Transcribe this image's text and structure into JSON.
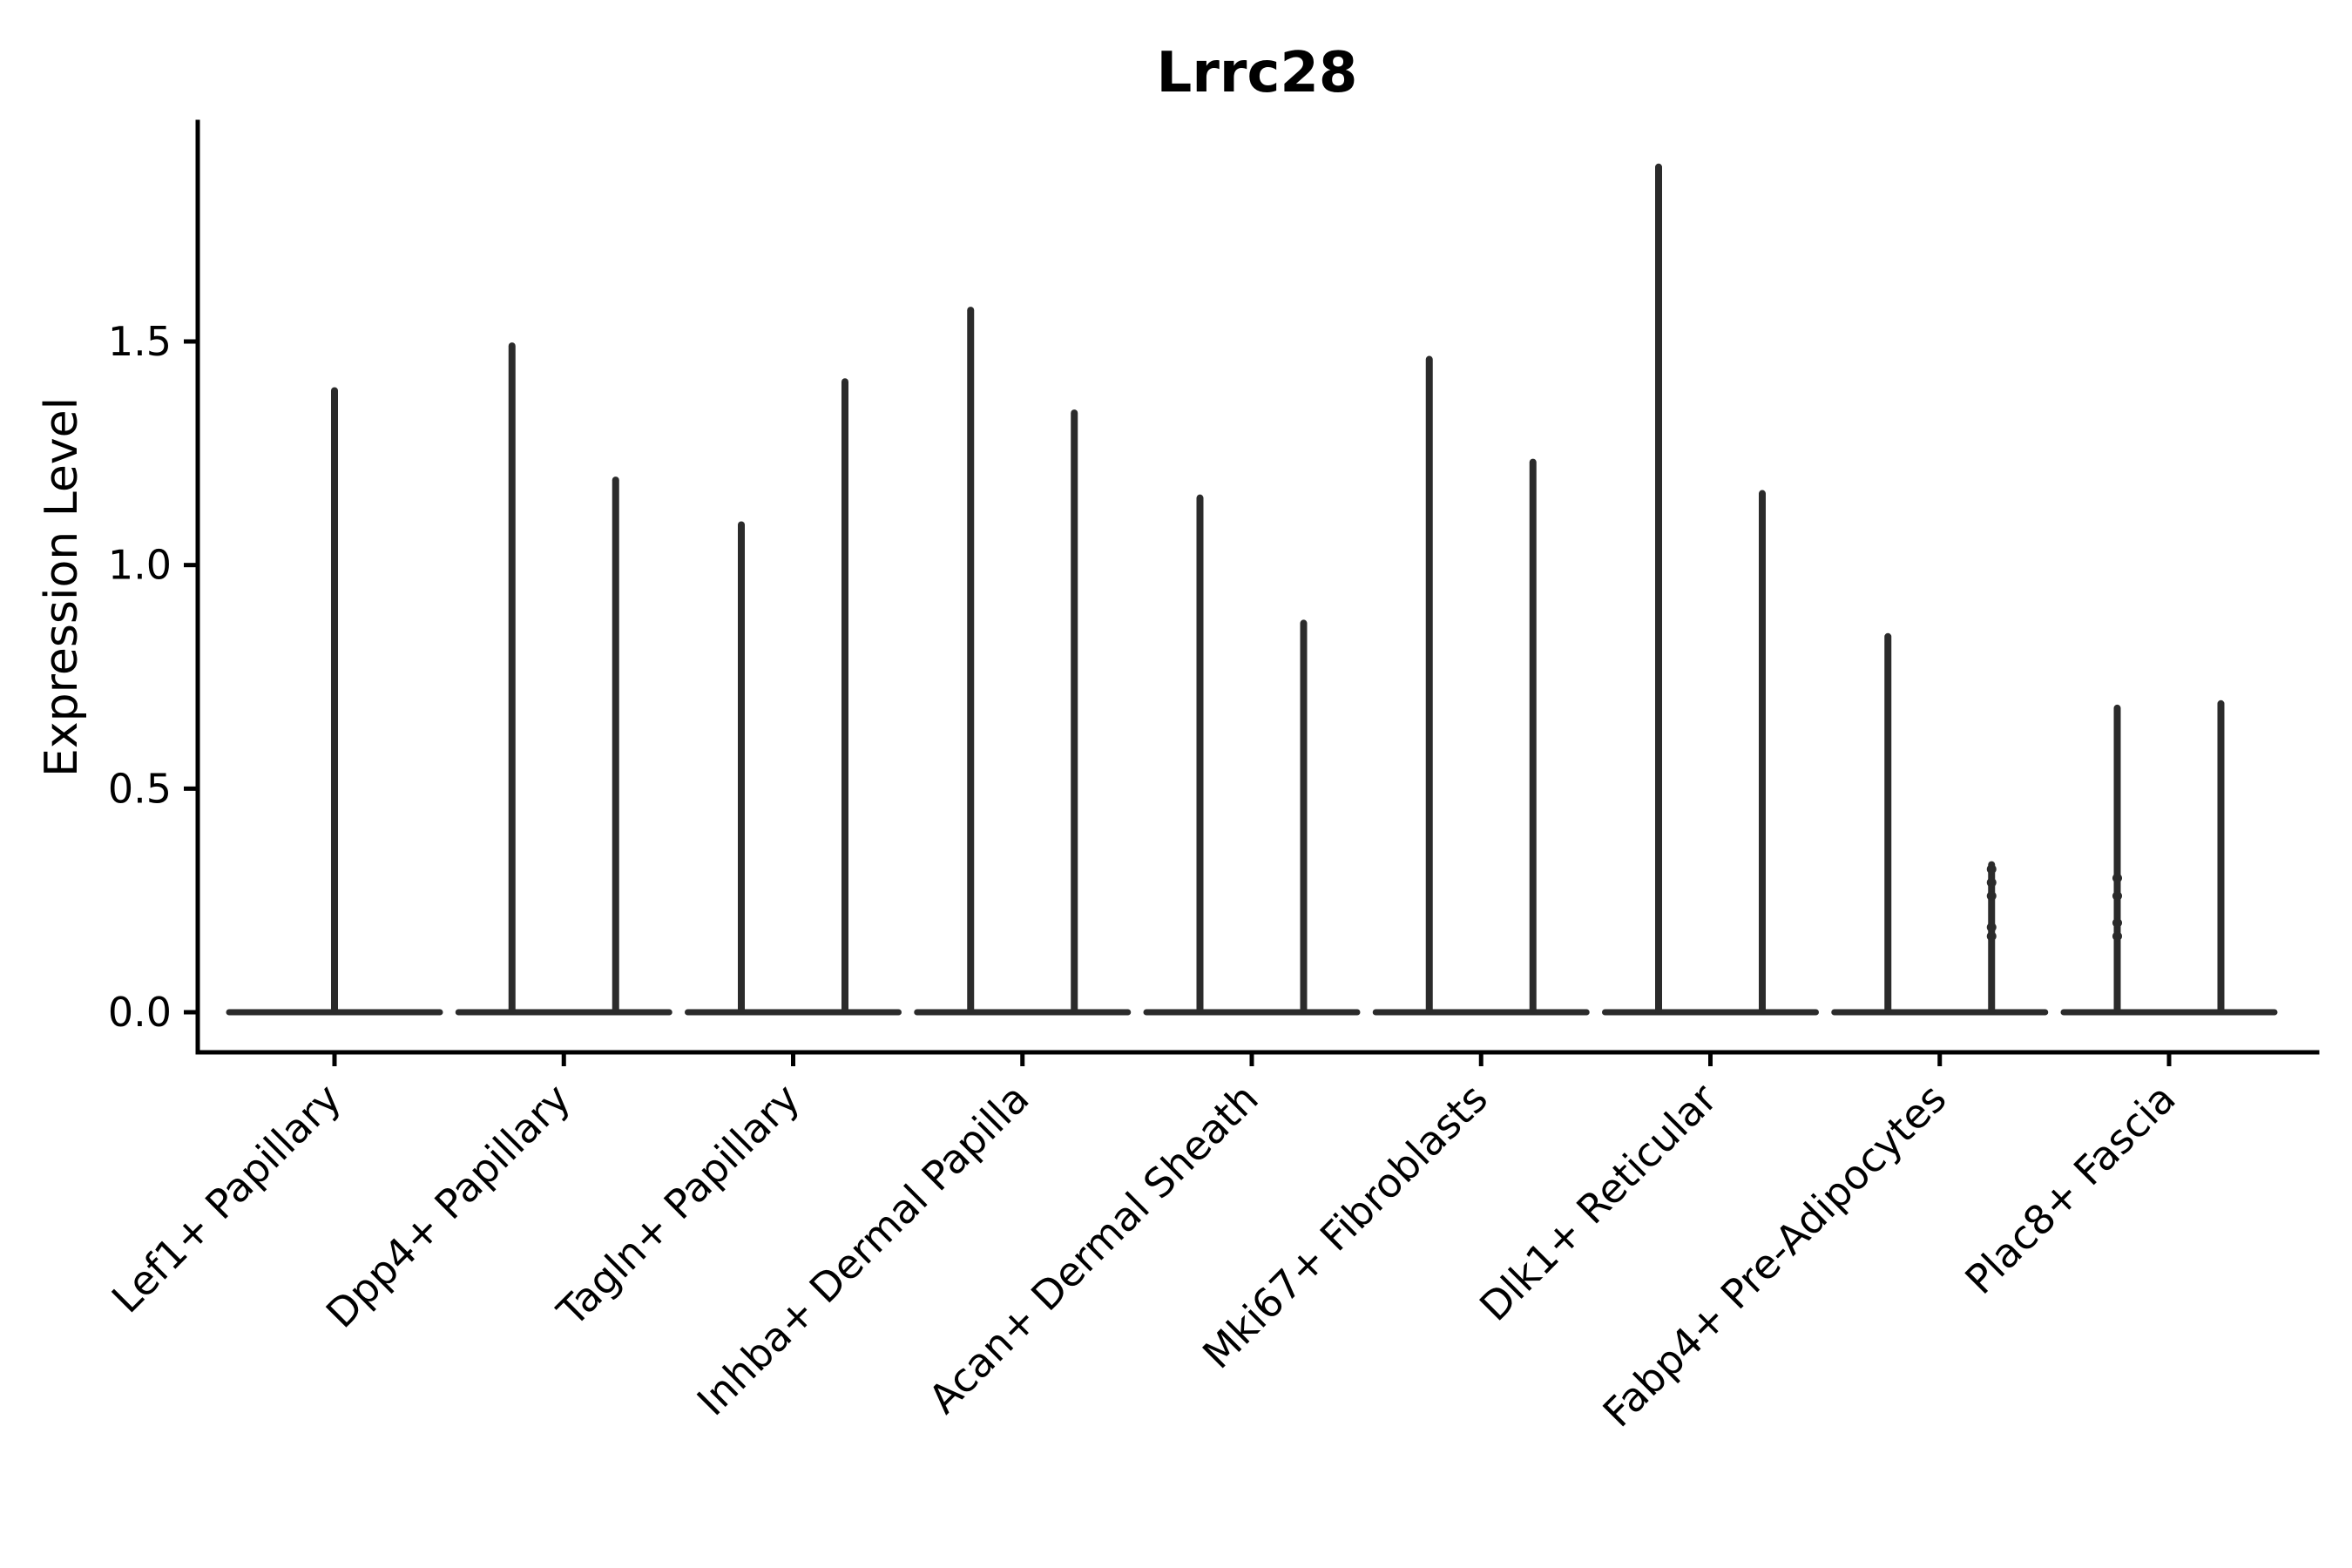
{
  "title": "Lrrc28",
  "colors": {
    "ink": "#2b2b2b",
    "axis": "#000000",
    "background": "#ffffff"
  },
  "chart_data": {
    "type": "violin",
    "title": "Lrrc28",
    "xlabel": "",
    "ylabel": "Expression Level",
    "ylim": [
      -0.09,
      1.99
    ],
    "grid": false,
    "legend": "none",
    "yticks": [
      {
        "value": 0.0,
        "label": "0.0"
      },
      {
        "value": 0.5,
        "label": "0.5"
      },
      {
        "value": 1.0,
        "label": "1.0"
      },
      {
        "value": 1.5,
        "label": "1.5"
      }
    ],
    "categories": [
      "Lef1+ Papillary",
      "Dpp4+ Papillary",
      "Tagln+ Papillary",
      "Inhba+ Dermal Papilla",
      "Acan+ Dermal Sheath",
      "Mki67+ Fibroblasts",
      "Dlk1+ Reticular",
      "Fabp4+ Pre-Adipocytes",
      "Plac8+ Fascia"
    ],
    "distribution_note": "Expression is concentrated at 0 for every group: each violin collapses to a flat base bar at y=0 with a thin vertical spike reaching to the group's maximum expression value.",
    "violins": [
      {
        "category": "Lef1+ Papillary",
        "spike_max": [
          1.39
        ],
        "points_on_spike": [
          []
        ]
      },
      {
        "category": "Dpp4+ Papillary",
        "spike_max": [
          1.49,
          1.19
        ],
        "points_on_spike": [
          [],
          []
        ]
      },
      {
        "category": "Tagln+ Papillary",
        "spike_max": [
          1.09,
          1.41
        ],
        "points_on_spike": [
          [],
          []
        ]
      },
      {
        "category": "Inhba+ Dermal Papilla",
        "spike_max": [
          1.57,
          1.34
        ],
        "points_on_spike": [
          [],
          []
        ]
      },
      {
        "category": "Acan+ Dermal Sheath",
        "spike_max": [
          1.15,
          0.87
        ],
        "points_on_spike": [
          [],
          []
        ]
      },
      {
        "category": "Mki67+ Fibroblasts",
        "spike_max": [
          1.46,
          1.23
        ],
        "points_on_spike": [
          [],
          []
        ]
      },
      {
        "category": "Dlk1+ Reticular",
        "spike_max": [
          1.89,
          1.16
        ],
        "points_on_spike": [
          [],
          []
        ]
      },
      {
        "category": "Fabp4+ Pre-Adipocytes",
        "spike_max": [
          0.84,
          0.33
        ],
        "points_on_spike": [
          [],
          [
            0.32,
            0.29,
            0.26,
            0.19,
            0.17
          ]
        ]
      },
      {
        "category": "Plac8+ Fascia",
        "spike_max": [
          0.68,
          0.69
        ],
        "points_on_spike": [
          [
            0.3,
            0.26,
            0.2,
            0.17
          ],
          []
        ]
      }
    ]
  }
}
